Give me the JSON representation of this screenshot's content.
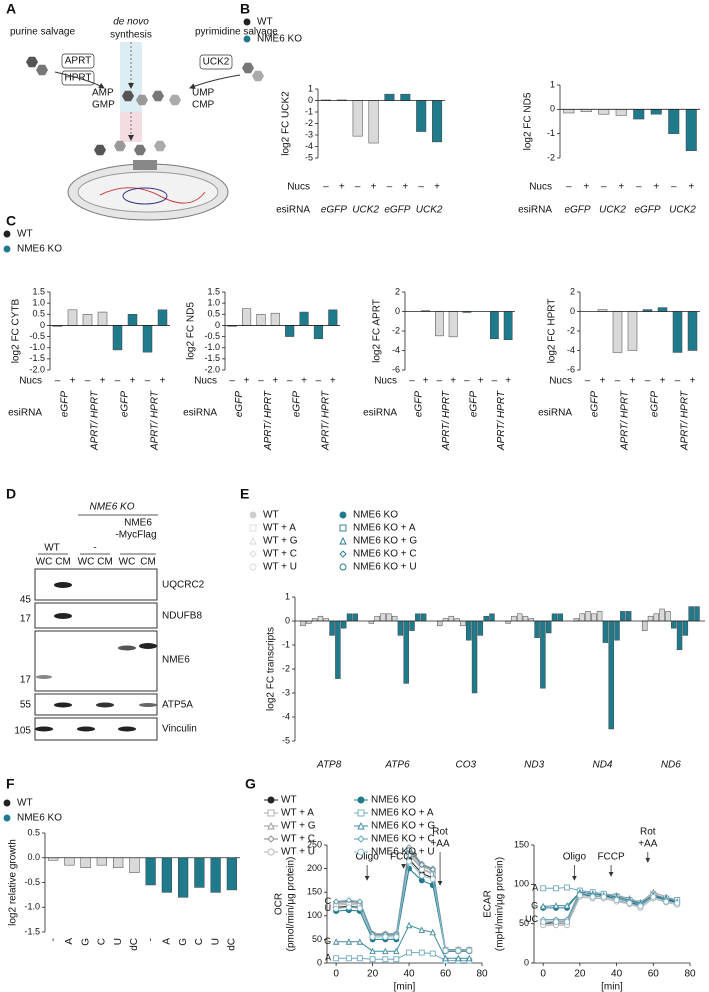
{
  "panel_labels": [
    "A",
    "B",
    "C",
    "D",
    "E",
    "F",
    "G"
  ],
  "panel_a": {
    "purine": "purine salvage",
    "de_novo": [
      "de novo",
      "synthesis"
    ],
    "pyrimidine": "pyrimidine salvage",
    "enzymes": [
      "APRT",
      "HPRT",
      "UCK2"
    ],
    "purines": [
      "AMP",
      "GMP"
    ],
    "pyrimidines": [
      "UMP",
      "CMP"
    ]
  },
  "panel_d": {
    "ko": "NME6 KO",
    "rescue": [
      "NME6",
      "-MycFlag"
    ],
    "wt": "WT",
    "empty": "-",
    "lanes": [
      "WC",
      "CM",
      "WC",
      "CM",
      "WC",
      "CM"
    ],
    "blots": [
      {
        "name": "UQCRC2",
        "mw": "45"
      },
      {
        "name": "NDUFB8",
        "mw": "17"
      },
      {
        "name": "NME6",
        "mw": "17"
      },
      {
        "name": "ATP5A",
        "mw": "55"
      },
      {
        "name": "Vinculin",
        "mw": "105"
      }
    ]
  },
  "chart_data": [
    {
      "type": "bar",
      "y_label": "log2 FC UCK2",
      "ylim": [
        -5,
        1
      ],
      "yticks": [
        1,
        0,
        -1,
        -2,
        -3,
        -4,
        -5
      ],
      "categories": [
        "–",
        "+",
        "–",
        "+",
        "–",
        "+",
        "–",
        "+"
      ],
      "groups": [
        "eGFP",
        "UCK2",
        "eGFP",
        "UCK2"
      ],
      "x_rows": [
        "Nucs",
        "esiRNA"
      ],
      "series": [
        {
          "name": "WT",
          "color": "#d9d9d9",
          "values": [
            0.05,
            0.05,
            -3.1,
            -3.7,
            null,
            null,
            null,
            null
          ]
        },
        {
          "name": "NME6 KO",
          "color": "#1f7a8c",
          "values": [
            null,
            null,
            null,
            null,
            0.55,
            0.55,
            -2.7,
            -3.6
          ]
        }
      ]
    },
    {
      "type": "bar",
      "y_label": "log2 FC ND5",
      "ylim": [
        -2,
        1
      ],
      "yticks": [
        1,
        0,
        -1,
        -2
      ],
      "categories": [
        "–",
        "+",
        "–",
        "+",
        "–",
        "+",
        "–",
        "+"
      ],
      "groups": [
        "eGFP",
        "UCK2",
        "eGFP",
        "UCK2"
      ],
      "x_rows": [
        "Nucs",
        "esiRNA"
      ],
      "series": [
        {
          "color": "#d9d9d9",
          "values": [
            -0.15,
            -0.1,
            -0.2,
            -0.25,
            null,
            null,
            null,
            null
          ]
        },
        {
          "color": "#1f7a8c",
          "values": [
            null,
            null,
            null,
            null,
            -0.4,
            -0.2,
            -1.0,
            -1.7
          ]
        }
      ]
    },
    {
      "type": "bar",
      "y_label": "log2 FC CYTB",
      "ylim": [
        -2,
        1.5
      ],
      "yticks": [
        1.5,
        {
          "value": 1,
          "label": "1.0"
        },
        0.5,
        0,
        -0.5,
        {
          "value": -1,
          "label": "-1.0"
        },
        -1.5,
        {
          "value": -2,
          "label": "-2.0"
        }
      ],
      "categories": [
        "–",
        "+",
        "–",
        "+",
        "–",
        "+",
        "–",
        "+"
      ],
      "groups": [
        "eGFP",
        "APRT/ HPRT",
        "eGFP",
        "APRT/ HPRT"
      ],
      "x_rows": [
        "Nucs",
        "esiRNA"
      ],
      "series": [
        {
          "name": "WT",
          "color": "#d9d9d9",
          "values": [
            -0.05,
            0.7,
            0.5,
            0.6,
            null,
            null,
            null,
            null
          ]
        },
        {
          "name": "NME6 KO",
          "color": "#1f7a8c",
          "values": [
            null,
            null,
            null,
            null,
            -1.1,
            0.5,
            -1.2,
            0.7
          ]
        }
      ]
    },
    {
      "type": "bar",
      "y_label": "log2 FC ND5",
      "ylim": [
        -2,
        1.5
      ],
      "yticks": [
        1.5,
        {
          "value": 1,
          "label": "1.0"
        },
        0.5,
        0,
        -0.5,
        {
          "value": -1,
          "label": "-1.0"
        },
        -1.5,
        {
          "value": -2,
          "label": "-2.0"
        }
      ],
      "categories": [
        "–",
        "+",
        "–",
        "+",
        "–",
        "+",
        "–",
        "+"
      ],
      "groups": [
        "eGFP",
        "APRT/ HPRT",
        "eGFP",
        "APRT/ HPRT"
      ],
      "x_rows": [
        "Nucs",
        "esiRNA"
      ],
      "series": [
        {
          "color": "#d9d9d9",
          "values": [
            -0.05,
            0.75,
            0.5,
            0.55,
            null,
            null,
            null,
            null
          ]
        },
        {
          "color": "#1f7a8c",
          "values": [
            null,
            null,
            null,
            null,
            -0.5,
            0.6,
            -0.6,
            0.7
          ]
        }
      ]
    },
    {
      "type": "bar",
      "y_label": "log2 FC APRT",
      "ylim": [
        -6,
        2
      ],
      "yticks": [
        2,
        0,
        -2,
        -4,
        -6
      ],
      "categories": [
        "–",
        "+",
        "–",
        "+",
        "–",
        "+",
        "–",
        "+"
      ],
      "groups": [
        "eGFP",
        "APRT/ HPRT",
        "eGFP",
        "APRT/ HPRT"
      ],
      "x_rows": [
        "Nucs",
        "esiRNA"
      ],
      "series": [
        {
          "color": "#d9d9d9",
          "values": [
            0,
            0.1,
            -2.5,
            -2.6,
            null,
            null,
            null,
            null
          ]
        },
        {
          "color": "#1f7a8c",
          "values": [
            null,
            null,
            null,
            null,
            -0.1,
            0,
            -2.8,
            -2.9
          ]
        }
      ]
    },
    {
      "type": "bar",
      "y_label": "log2 FC HPRT",
      "ylim": [
        -6,
        2
      ],
      "yticks": [
        2,
        0,
        -2,
        -4,
        -6
      ],
      "categories": [
        "–",
        "+",
        "–",
        "+",
        "–",
        "+",
        "–",
        "+"
      ],
      "groups": [
        "eGFP",
        "APRT/ HPRT",
        "eGFP",
        "APRT/ HPRT"
      ],
      "x_rows": [
        "Nucs",
        "esiRNA"
      ],
      "series": [
        {
          "color": "#d9d9d9",
          "values": [
            0,
            0.2,
            -4.2,
            -4.0,
            null,
            null,
            null,
            null
          ]
        },
        {
          "color": "#1f7a8c",
          "values": [
            null,
            null,
            null,
            null,
            0.2,
            0.4,
            -4.2,
            -4.0
          ]
        }
      ]
    },
    {
      "type": "bar",
      "y_label": "log2 FC transcripts",
      "ylim": [
        -5,
        1
      ],
      "yticks": [
        1,
        0,
        -1,
        -2,
        -3,
        -4,
        -5
      ],
      "categories": [
        "ATP8",
        "ATP6",
        "CO3",
        "ND3",
        "ND4",
        "ND6"
      ],
      "series": [
        {
          "name": "WT",
          "color": "#cfcfcf",
          "marker": "circle",
          "values": [
            -0.2,
            -0.1,
            -0.2,
            -0.1,
            0.1,
            -0.4
          ]
        },
        {
          "name": "WT + A",
          "color": "#d9d9d9",
          "marker": "square",
          "values": [
            -0.1,
            0.2,
            0.1,
            0.2,
            0.3,
            0.2
          ]
        },
        {
          "name": "WT + G",
          "color": "#d9d9d9",
          "marker": "triangle",
          "values": [
            0.1,
            0.3,
            0.2,
            0.3,
            0.4,
            0.3
          ]
        },
        {
          "name": "WT + C",
          "color": "#d9d9d9",
          "marker": "diamond",
          "values": [
            0.2,
            0.3,
            0.1,
            0.2,
            0.3,
            0.5
          ]
        },
        {
          "name": "WT + U",
          "color": "#d9d9d9",
          "marker": "ocircle",
          "values": [
            0.1,
            0.2,
            -0.2,
            0.1,
            0.4,
            0.4
          ]
        },
        {
          "name": "NME6 KO",
          "color": "#1f7a8c",
          "marker": "circle",
          "values": [
            -0.6,
            -0.6,
            -0.8,
            -0.7,
            -0.9,
            -0.3
          ]
        },
        {
          "name": "NME6 KO + A",
          "color": "#1f7a8c",
          "marker": "square",
          "values": [
            -2.4,
            -2.6,
            -3.0,
            -2.8,
            -4.5,
            -1.2
          ]
        },
        {
          "name": "NME6 KO + G",
          "color": "#1f7a8c",
          "marker": "triangle",
          "values": [
            -0.3,
            -0.4,
            -0.6,
            -0.5,
            -0.8,
            -0.6
          ]
        },
        {
          "name": "NME6 KO + C",
          "color": "#1f7a8c",
          "marker": "diamond",
          "values": [
            0.3,
            0.3,
            0.2,
            0.3,
            0.4,
            0.6
          ]
        },
        {
          "name": "NME6 KO + U",
          "color": "#1f7a8c",
          "marker": "ocircle",
          "values": [
            0.3,
            0.3,
            0.3,
            0.3,
            0.4,
            0.6
          ]
        }
      ]
    },
    {
      "type": "bar",
      "y_label": "log2 relative growth",
      "ylim": [
        -1.5,
        0.5
      ],
      "yticks": [
        0.5,
        {
          "value": 0,
          "label": "0.0"
        },
        -0.5,
        {
          "value": -1,
          "label": "-1.0"
        },
        -1.5
      ],
      "categories": [
        "-",
        "A",
        "G",
        "C",
        "U",
        "dC",
        "-",
        "A",
        "G",
        "C",
        "U",
        "dC"
      ],
      "series": [
        {
          "name": "WT",
          "color": "#d9d9d9",
          "values": [
            -0.05,
            -0.15,
            -0.2,
            -0.15,
            -0.2,
            -0.3,
            null,
            null,
            null,
            null,
            null,
            null
          ]
        },
        {
          "name": "NME6 KO",
          "color": "#1f7a8c",
          "values": [
            null,
            null,
            null,
            null,
            null,
            null,
            -0.55,
            -0.7,
            -0.8,
            -0.6,
            -0.7,
            -0.65
          ]
        }
      ]
    },
    {
      "type": "line",
      "y_label": [
        "OCR",
        "(pmol/min/µg protein)"
      ],
      "x_label": "[min]",
      "x": [
        0,
        7,
        13,
        20,
        27,
        33,
        40,
        47,
        53,
        60,
        67,
        73
      ],
      "xlim": [
        -5,
        80
      ],
      "xticks": [
        0,
        20,
        40,
        60,
        80
      ],
      "ylim": [
        0,
        250
      ],
      "yticks": [
        0,
        50,
        100,
        150,
        200,
        250
      ],
      "injections": [
        {
          "label": [
            "Oligo"
          ],
          "x": 17
        },
        {
          "label": [
            "FCCP"
          ],
          "x": 37
        },
        {
          "label": [
            "Rot",
            "+AA"
          ],
          "x": 57
        }
      ],
      "series": [
        {
          "name": "WT",
          "color": "#222222",
          "marker": "circle",
          "values": [
            118,
            120,
            118,
            55,
            55,
            55,
            220,
            190,
            180,
            25,
            25,
            25
          ]
        },
        {
          "name": "WT + A",
          "color": "#aaaaaa",
          "marker": "square",
          "values": [
            125,
            128,
            125,
            60,
            60,
            60,
            235,
            200,
            190,
            28,
            28,
            28
          ]
        },
        {
          "name": "WT + G",
          "color": "#999999",
          "marker": "triangle",
          "values": [
            128,
            130,
            128,
            60,
            60,
            60,
            240,
            205,
            195,
            28,
            28,
            28
          ]
        },
        {
          "name": "WT + C",
          "color": "#888888",
          "marker": "diamond",
          "values": [
            130,
            132,
            130,
            62,
            62,
            62,
            245,
            210,
            200,
            28,
            28,
            28
          ]
        },
        {
          "name": "WT + U",
          "color": "#b5b5b5",
          "marker": "ocircle",
          "values": [
            122,
            125,
            122,
            58,
            58,
            58,
            230,
            198,
            188,
            26,
            26,
            26
          ]
        },
        {
          "name": "NME6 KO",
          "color": "#1f7a8c",
          "marker": "circle",
          "values": [
            110,
            112,
            110,
            50,
            50,
            50,
            200,
            175,
            165,
            25,
            25,
            25
          ]
        },
        {
          "name": "NME6 KO + A",
          "color": "#6fa8c0",
          "marker": "square",
          "tag": "A",
          "values": [
            10,
            10,
            10,
            8,
            8,
            8,
            22,
            22,
            20,
            5,
            5,
            5
          ]
        },
        {
          "name": "NME6 KO + G",
          "color": "#3f8aa0",
          "marker": "triangle",
          "tag": "G",
          "values": [
            45,
            45,
            45,
            25,
            25,
            25,
            80,
            70,
            65,
            10,
            10,
            10
          ]
        },
        {
          "name": "NME6 KO + C",
          "color": "#5a9cb0",
          "marker": "diamond",
          "tag": "C",
          "values": [
            130,
            133,
            130,
            60,
            60,
            60,
            240,
            208,
            198,
            28,
            28,
            28
          ]
        },
        {
          "name": "NME6 KO + U",
          "color": "#8fbccc",
          "marker": "ocircle",
          "tag": "U",
          "values": [
            115,
            118,
            116,
            55,
            55,
            55,
            215,
            185,
            178,
            26,
            26,
            26
          ]
        }
      ]
    },
    {
      "type": "line",
      "y_label": [
        "ECAR",
        "(mpH/min/µg protein)"
      ],
      "x_label": "[min]",
      "x": [
        0,
        7,
        13,
        20,
        27,
        33,
        40,
        47,
        53,
        60,
        67,
        73
      ],
      "xlim": [
        -5,
        80
      ],
      "xticks": [
        0,
        20,
        40,
        60,
        80
      ],
      "ylim": [
        0,
        150
      ],
      "yticks": [
        0,
        50,
        100,
        150
      ],
      "injections": [
        {
          "label": [
            "Oligo"
          ],
          "x": 17
        },
        {
          "label": [
            "FCCP"
          ],
          "x": 37
        },
        {
          "label": [
            "Rot",
            "+AA"
          ],
          "x": 57
        }
      ],
      "series": [
        {
          "color": "#222222",
          "marker": "circle",
          "values": [
            50,
            52,
            52,
            88,
            85,
            85,
            82,
            78,
            72,
            85,
            80,
            78
          ]
        },
        {
          "color": "#aaaaaa",
          "marker": "square",
          "values": [
            52,
            53,
            53,
            90,
            88,
            87,
            85,
            80,
            75,
            88,
            82,
            80
          ]
        },
        {
          "color": "#999999",
          "marker": "triangle",
          "values": [
            55,
            55,
            55,
            92,
            90,
            88,
            86,
            82,
            77,
            90,
            84,
            80
          ]
        },
        {
          "color": "#888888",
          "marker": "diamond",
          "values": [
            50,
            50,
            50,
            86,
            84,
            84,
            80,
            76,
            72,
            84,
            79,
            76
          ]
        },
        {
          "color": "#b5b5b5",
          "marker": "ocircle",
          "values": [
            48,
            48,
            48,
            84,
            82,
            82,
            78,
            75,
            70,
            82,
            77,
            74
          ]
        },
        {
          "color": "#1f7a8c",
          "marker": "circle",
          "values": [
            70,
            70,
            70,
            90,
            88,
            86,
            84,
            80,
            75,
            86,
            82,
            78
          ]
        },
        {
          "color": "#6fa8c0",
          "marker": "square",
          "tag": "A",
          "values": [
            95,
            95,
            96,
            92,
            90,
            88,
            84,
            80,
            76,
            86,
            82,
            80
          ]
        },
        {
          "color": "#3f8aa0",
          "marker": "triangle",
          "tag": "G",
          "values": [
            72,
            73,
            73,
            90,
            88,
            86,
            84,
            80,
            76,
            86,
            82,
            78
          ]
        },
        {
          "color": "#5a9cb0",
          "marker": "diamond",
          "tag": "UC",
          "values": [
            55,
            55,
            55,
            88,
            86,
            84,
            82,
            78,
            74,
            84,
            80,
            76
          ]
        },
        {
          "color": "#8fbccc",
          "marker": "ocircle",
          "values": [
            52,
            52,
            52,
            86,
            84,
            84,
            80,
            76,
            72,
            84,
            78,
            76
          ]
        }
      ]
    }
  ]
}
